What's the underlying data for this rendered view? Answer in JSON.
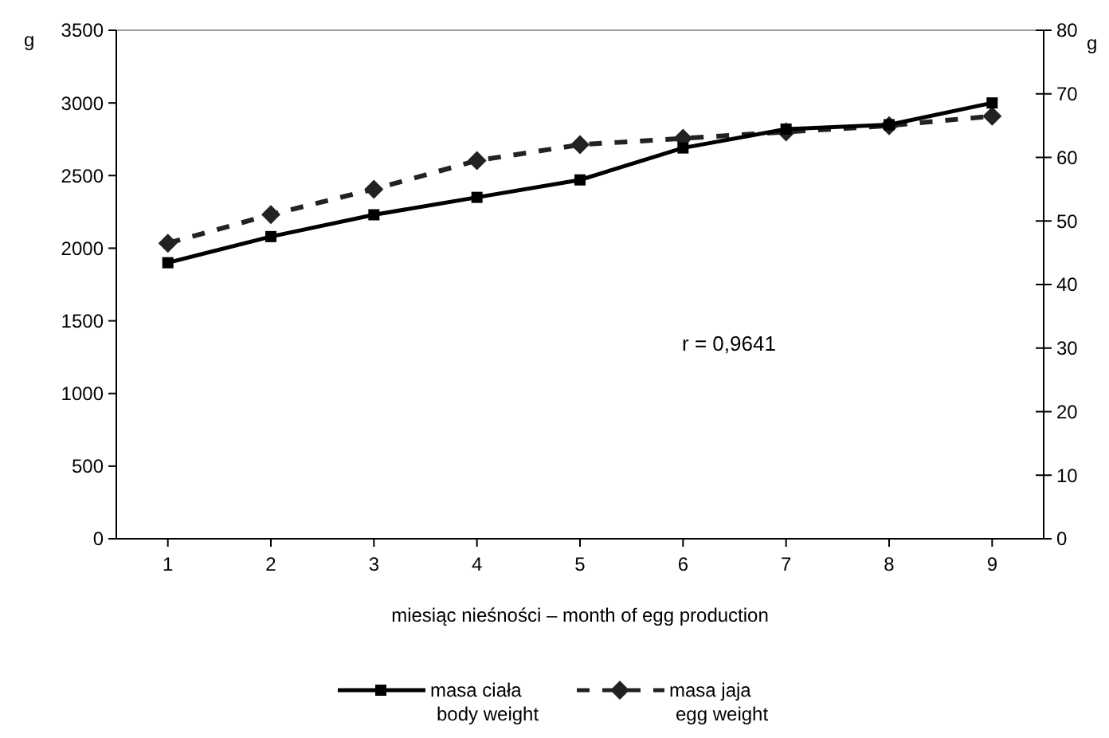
{
  "chart_data": {
    "type": "line",
    "xlabel": "miesiąc nieśności – month of egg production",
    "ylabel": "g",
    "y2label": "g",
    "categories": [
      "1",
      "2",
      "3",
      "4",
      "5",
      "6",
      "7",
      "8",
      "9"
    ],
    "ylim": [
      0,
      3500
    ],
    "yticks": [
      0,
      500,
      1000,
      1500,
      2000,
      2500,
      3000,
      3500
    ],
    "y2lim": [
      0,
      80
    ],
    "y2ticks": [
      0,
      10,
      20,
      30,
      40,
      50,
      60,
      70,
      80
    ],
    "grid": false,
    "legend": "bottom",
    "annotations": [
      "r = 0,9641"
    ],
    "series": [
      {
        "name": "masa ciała\nbody weight",
        "color": "#000000",
        "marker": "square",
        "line_style": "solid",
        "values": [
          1900,
          2080,
          2230,
          2350,
          2470,
          2690,
          2820,
          2850,
          3000
        ]
      },
      {
        "name": "masa jaja\negg weight",
        "color": "#222222",
        "marker": "diamond",
        "line_style": "dashed",
        "axis": "y2",
        "values": [
          46.5,
          51,
          55,
          59.5,
          62,
          63,
          64,
          65,
          66.5
        ]
      }
    ]
  }
}
